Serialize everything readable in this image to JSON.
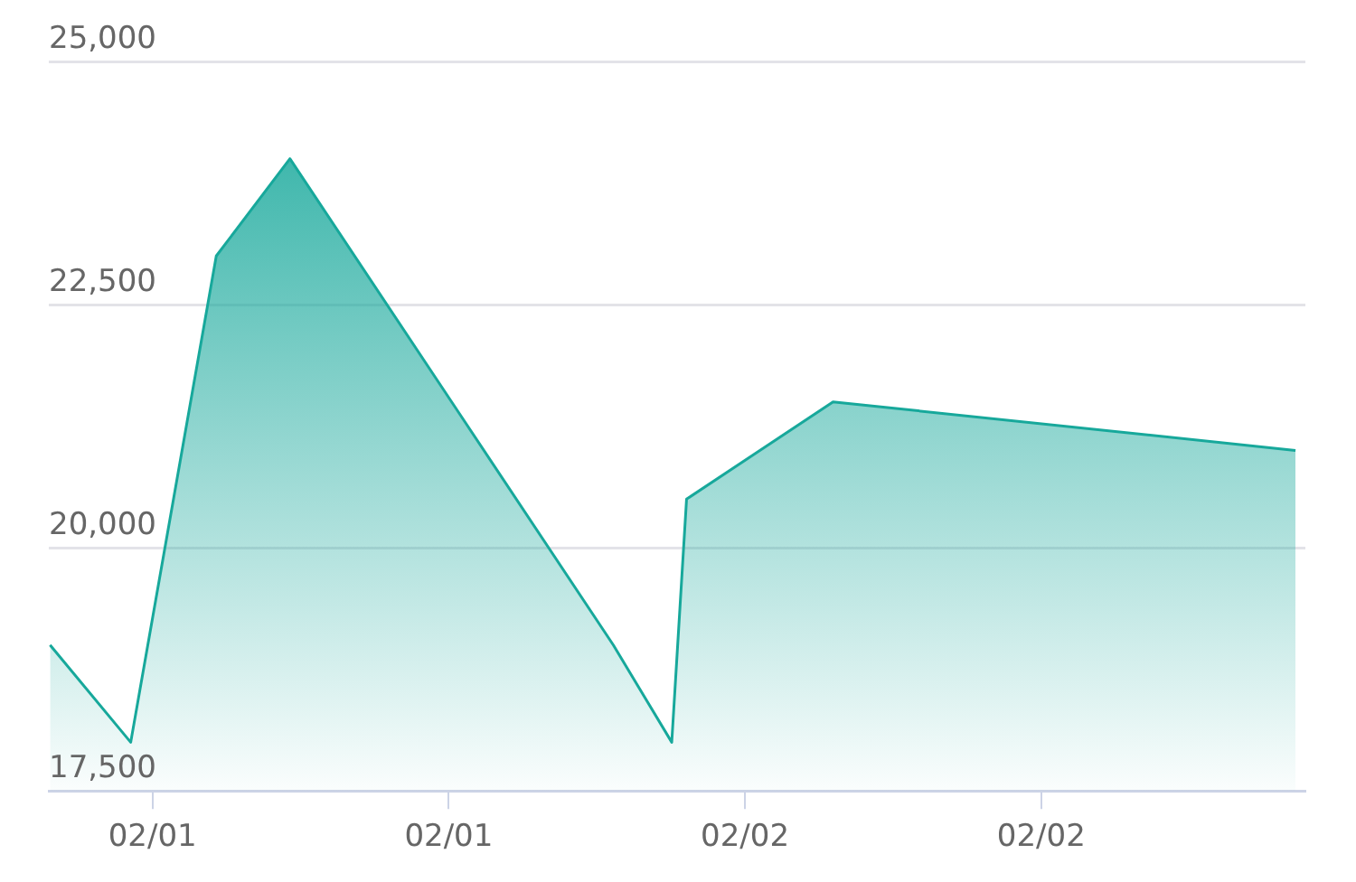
{
  "chart_data": {
    "type": "area",
    "x": [
      "--01-31T19:51",
      "--01-31T23:07",
      "--02-01T02:35",
      "--02-01T05:34",
      "--02-01T18:40",
      "--02-01T21:02",
      "--02-01T21:38",
      "--02-02T03:34",
      "--02-02T22:18"
    ],
    "series": [
      {
        "color": "#17a89b",
        "values": [
          19000,
          18000,
          23000,
          24000,
          19000,
          18000,
          20500,
          21500,
          21000
        ]
      }
    ],
    "xlim": [
      "--01-31T19:48",
      "--02-02T22:42"
    ],
    "xticks": [
      {
        "value": "--02-01",
        "label": "02/01"
      },
      {
        "value": "--02-01T12:00",
        "label": "02/01"
      },
      {
        "value": "--02-02",
        "label": "02/02"
      },
      {
        "value": "--02-02T12:00",
        "label": "02/02"
      }
    ],
    "ylim": [
      17500,
      25000
    ],
    "yticks": [
      {
        "value": 17500,
        "label": "17,500"
      },
      {
        "value": 20000,
        "label": "20,000"
      },
      {
        "value": 22500,
        "label": "22,500"
      },
      {
        "value": 25000,
        "label": "25,000"
      }
    ],
    "grid": "y",
    "legend": false,
    "marker": "none",
    "line_style": "solid"
  }
}
